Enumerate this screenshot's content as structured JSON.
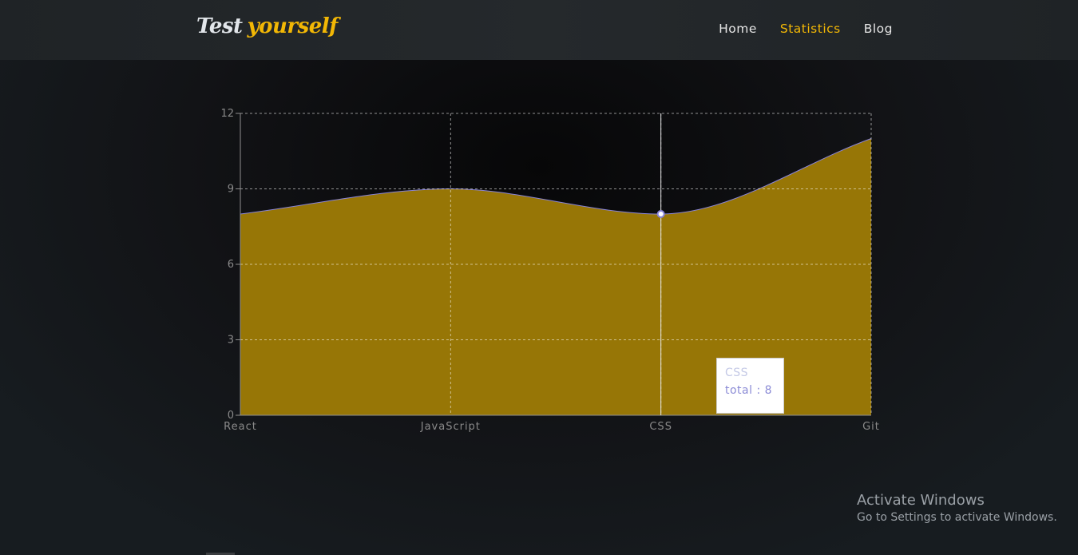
{
  "brand": {
    "part1": "Test",
    "part2": "yourself"
  },
  "nav": [
    {
      "label": "Home",
      "active": false
    },
    {
      "label": "Statistics",
      "active": true
    },
    {
      "label": "Blog",
      "active": false
    }
  ],
  "chart_data": {
    "type": "area",
    "categories": [
      "React",
      "JavaScript",
      "CSS",
      "Git"
    ],
    "series": [
      {
        "key": "total",
        "values": [
          8,
          9,
          8,
          11
        ]
      }
    ],
    "ylim": [
      0,
      12
    ],
    "yticks": [
      0,
      3,
      6,
      9,
      12
    ],
    "grid": true,
    "fill_color": "#977606",
    "stroke_color": "#8884d8"
  },
  "tooltip": {
    "label": "CSS",
    "value_text": "total : 8"
  },
  "watermark": {
    "line1": "Activate Windows",
    "line2": "Go to Settings to activate Windows."
  }
}
